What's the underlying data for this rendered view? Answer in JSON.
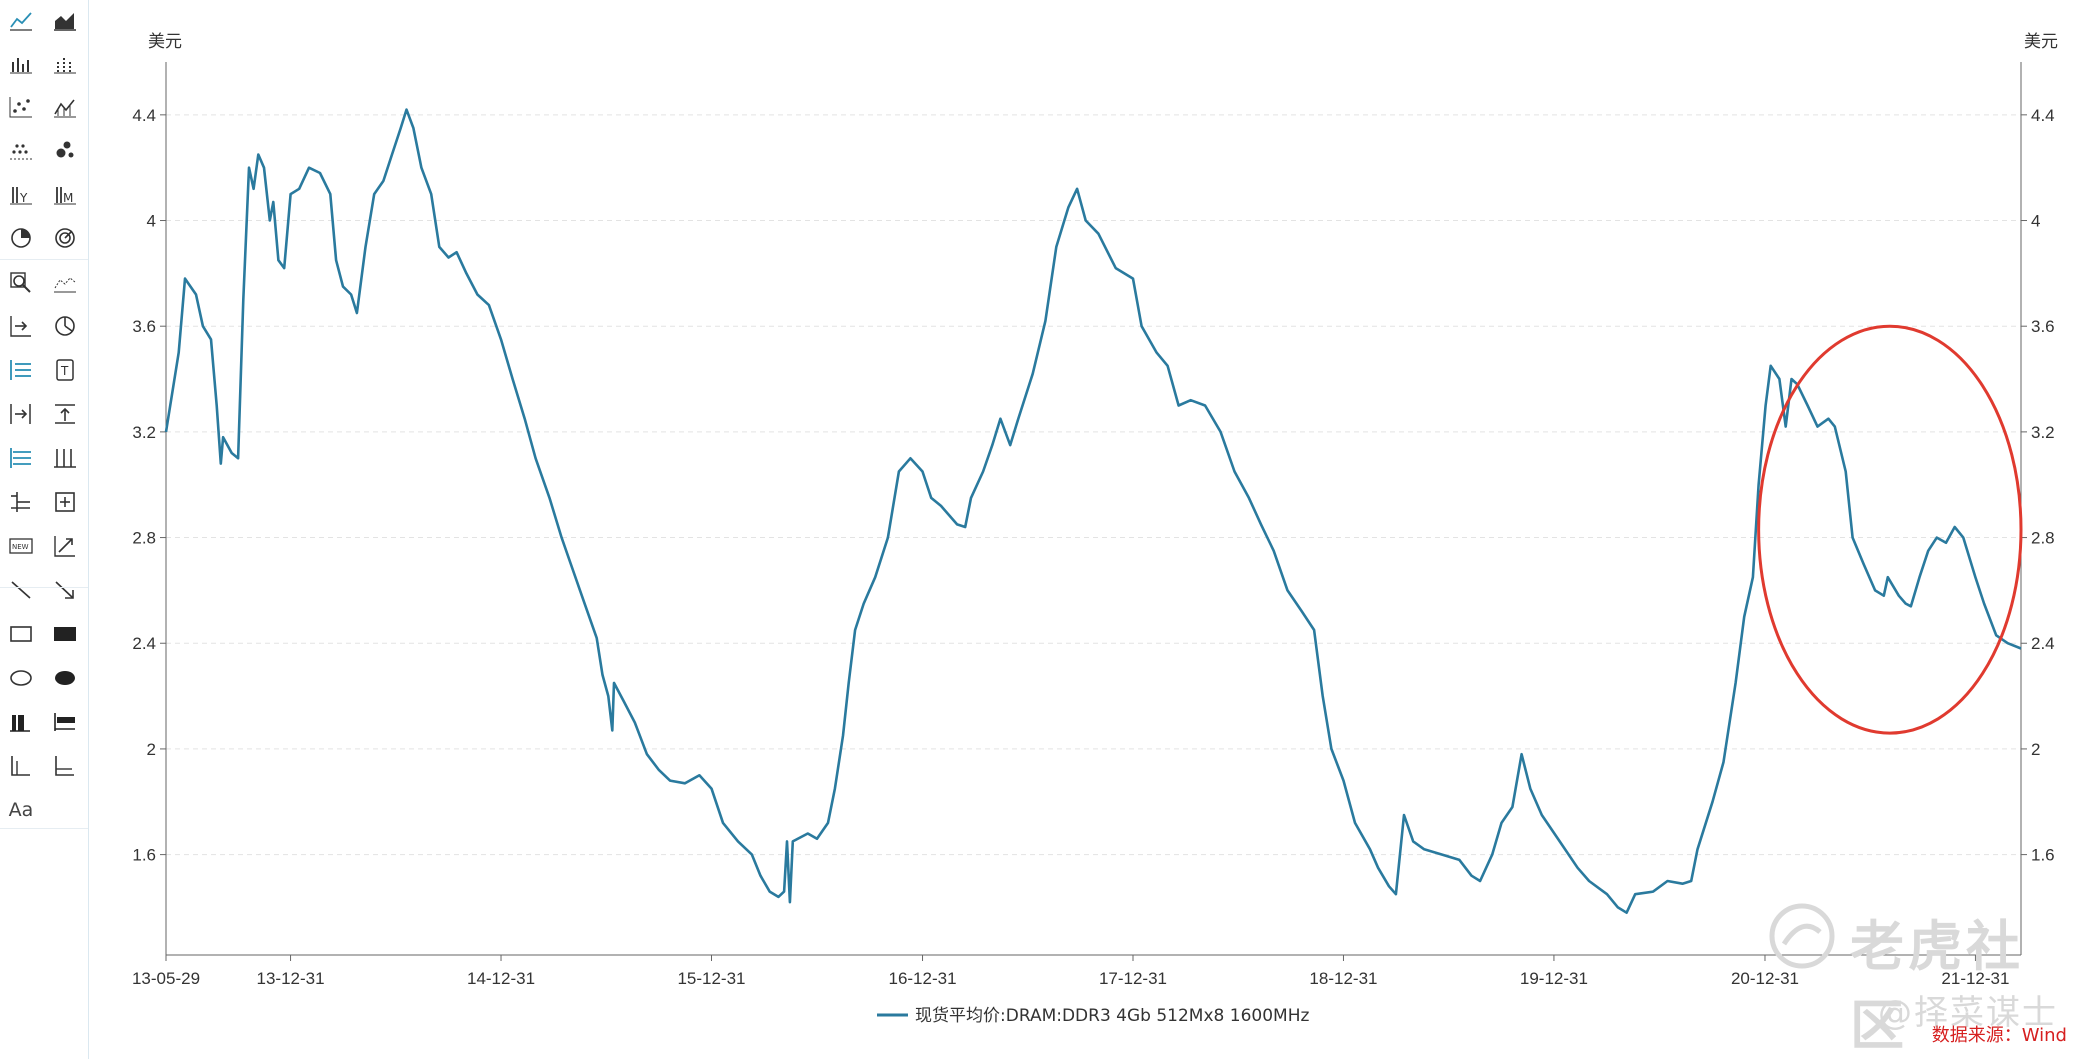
{
  "toolbar": {
    "items": [
      {
        "icon": "line-chart-icon"
      },
      {
        "icon": "area-chart-icon"
      },
      {
        "icon": "bar-chart-icon"
      },
      {
        "icon": "dotted-bar-chart-icon"
      },
      {
        "icon": "scatter-chart-icon"
      },
      {
        "icon": "area-bar-chart-icon"
      },
      {
        "icon": "dot-plot-icon"
      },
      {
        "icon": "bubble-chart-icon"
      },
      {
        "icon": "bar-y-chart-icon"
      },
      {
        "icon": "bar-m-chart-icon"
      },
      {
        "icon": "pie-chart-icon"
      },
      {
        "icon": "radar-chart-icon"
      },
      {
        "icon": "zoom-icon"
      },
      {
        "icon": "histogram-icon"
      },
      {
        "icon": "arrow-right-icon"
      },
      {
        "icon": "pie-slice-icon"
      },
      {
        "icon": "list-lines-icon"
      },
      {
        "icon": "text-box-icon"
      },
      {
        "icon": "arrow-right-bar-icon"
      },
      {
        "icon": "arrow-up-bar-icon"
      },
      {
        "icon": "indent-lines-icon"
      },
      {
        "icon": "column-lines-icon"
      },
      {
        "icon": "tree-lines-icon"
      },
      {
        "icon": "add-box-icon"
      },
      {
        "icon": "new-badge-icon"
      },
      {
        "icon": "trend-arrow-icon"
      },
      {
        "icon": "line-tool-icon"
      },
      {
        "icon": "arrow-tool-icon"
      },
      {
        "icon": "rectangle-outline-icon"
      },
      {
        "icon": "rectangle-filled-icon"
      },
      {
        "icon": "ellipse-outline-icon"
      },
      {
        "icon": "ellipse-filled-icon"
      },
      {
        "icon": "bar-left-icon"
      },
      {
        "icon": "bar-horizontal-icon"
      },
      {
        "icon": "axis-left-icon"
      },
      {
        "icon": "axis-bottom-icon"
      },
      {
        "icon": "text-tool-icon",
        "label": "Aa"
      }
    ]
  },
  "colors": {
    "series": "#2a7a9e",
    "annotation": "#e03a2f",
    "grid": "#e3e3e3",
    "axis": "#666666",
    "source_label": "#d61f1f"
  },
  "watermark": {
    "logo_text": "老虎社区",
    "handle": "@择菜谋士"
  },
  "source": {
    "label": "数据来源：",
    "value": "Wind"
  },
  "chart_data": {
    "type": "line",
    "unit_left": "美元",
    "unit_right": "美元",
    "ylim": [
      1.22,
      4.6
    ],
    "y_ticks": [
      1.6,
      2,
      2.4,
      2.8,
      3.2,
      3.6,
      4,
      4.4
    ],
    "y_tick_labels": [
      "1.6",
      "2",
      "2.4",
      "2.8",
      "3.2",
      "3.6",
      "4",
      "4.4"
    ],
    "x_tick_labels": [
      "13-05-29",
      "13-12-31",
      "14-12-31",
      "15-12-31",
      "16-12-31",
      "17-12-31",
      "18-12-31",
      "19-12-31",
      "20-12-31",
      "21-12-31"
    ],
    "x_ticks": [
      "2013-05-29",
      "2013-12-31",
      "2014-12-31",
      "2015-12-31",
      "2016-12-31",
      "2017-12-31",
      "2018-12-31",
      "2019-12-31",
      "2020-12-31",
      "2021-12-31"
    ],
    "xlim": [
      "2013-05-29",
      "2022-03-20"
    ],
    "grid": "horizontal-dashed",
    "legend_position": "bottom-center",
    "series": [
      {
        "name": "现货平均价:DRAM:DDR3 4Gb 512Mx8 1600MHz",
        "points": [
          [
            "2013-05-29",
            3.2
          ],
          [
            "2013-06-20",
            3.5
          ],
          [
            "2013-07-01",
            3.78
          ],
          [
            "2013-07-20",
            3.72
          ],
          [
            "2013-08-01",
            3.6
          ],
          [
            "2013-08-15",
            3.55
          ],
          [
            "2013-08-25",
            3.3
          ],
          [
            "2013-09-01",
            3.08
          ],
          [
            "2013-09-05",
            3.18
          ],
          [
            "2013-09-20",
            3.12
          ],
          [
            "2013-10-01",
            3.1
          ],
          [
            "2013-10-10",
            3.7
          ],
          [
            "2013-10-20",
            4.2
          ],
          [
            "2013-10-28",
            4.12
          ],
          [
            "2013-11-05",
            4.25
          ],
          [
            "2013-11-15",
            4.2
          ],
          [
            "2013-11-25",
            4.0
          ],
          [
            "2013-12-01",
            4.07
          ],
          [
            "2013-12-10",
            3.85
          ],
          [
            "2013-12-20",
            3.82
          ],
          [
            "2013-12-31",
            4.1
          ],
          [
            "2014-01-15",
            4.12
          ],
          [
            "2014-02-01",
            4.2
          ],
          [
            "2014-02-20",
            4.18
          ],
          [
            "2014-03-10",
            4.1
          ],
          [
            "2014-03-20",
            3.85
          ],
          [
            "2014-04-01",
            3.75
          ],
          [
            "2014-04-15",
            3.72
          ],
          [
            "2014-04-25",
            3.65
          ],
          [
            "2014-05-10",
            3.9
          ],
          [
            "2014-05-25",
            4.1
          ],
          [
            "2014-06-10",
            4.15
          ],
          [
            "2014-06-25",
            4.25
          ],
          [
            "2014-07-10",
            4.35
          ],
          [
            "2014-07-20",
            4.42
          ],
          [
            "2014-08-01",
            4.35
          ],
          [
            "2014-08-15",
            4.2
          ],
          [
            "2014-09-01",
            4.1
          ],
          [
            "2014-09-15",
            3.9
          ],
          [
            "2014-10-01",
            3.86
          ],
          [
            "2014-10-15",
            3.88
          ],
          [
            "2014-11-01",
            3.8
          ],
          [
            "2014-11-20",
            3.72
          ],
          [
            "2014-12-10",
            3.68
          ],
          [
            "2014-12-31",
            3.55
          ],
          [
            "2015-01-20",
            3.4
          ],
          [
            "2015-02-10",
            3.25
          ],
          [
            "2015-03-01",
            3.1
          ],
          [
            "2015-03-25",
            2.95
          ],
          [
            "2015-04-15",
            2.8
          ],
          [
            "2015-05-01",
            2.7
          ],
          [
            "2015-05-25",
            2.55
          ],
          [
            "2015-06-15",
            2.42
          ],
          [
            "2015-06-25",
            2.28
          ],
          [
            "2015-07-05",
            2.2
          ],
          [
            "2015-07-12",
            2.07
          ],
          [
            "2015-07-15",
            2.25
          ],
          [
            "2015-08-01",
            2.18
          ],
          [
            "2015-08-20",
            2.1
          ],
          [
            "2015-09-10",
            1.98
          ],
          [
            "2015-10-01",
            1.92
          ],
          [
            "2015-10-20",
            1.88
          ],
          [
            "2015-11-15",
            1.87
          ],
          [
            "2015-12-10",
            1.9
          ],
          [
            "2015-12-31",
            1.85
          ],
          [
            "2016-01-20",
            1.72
          ],
          [
            "2016-02-15",
            1.65
          ],
          [
            "2016-03-10",
            1.6
          ],
          [
            "2016-03-25",
            1.52
          ],
          [
            "2016-04-10",
            1.46
          ],
          [
            "2016-04-25",
            1.44
          ],
          [
            "2016-05-05",
            1.46
          ],
          [
            "2016-05-10",
            1.65
          ],
          [
            "2016-05-15",
            1.42
          ],
          [
            "2016-05-20",
            1.65
          ],
          [
            "2016-06-15",
            1.68
          ],
          [
            "2016-07-01",
            1.66
          ],
          [
            "2016-07-20",
            1.72
          ],
          [
            "2016-08-01",
            1.85
          ],
          [
            "2016-08-15",
            2.05
          ],
          [
            "2016-08-25",
            2.25
          ],
          [
            "2016-09-05",
            2.45
          ],
          [
            "2016-09-20",
            2.55
          ],
          [
            "2016-10-10",
            2.65
          ],
          [
            "2016-11-01",
            2.8
          ],
          [
            "2016-11-20",
            3.05
          ],
          [
            "2016-12-10",
            3.1
          ],
          [
            "2016-12-31",
            3.05
          ],
          [
            "2017-01-15",
            2.95
          ],
          [
            "2017-02-01",
            2.92
          ],
          [
            "2017-03-01",
            2.85
          ],
          [
            "2017-03-15",
            2.84
          ],
          [
            "2017-03-25",
            2.95
          ],
          [
            "2017-04-15",
            3.05
          ],
          [
            "2017-05-01",
            3.15
          ],
          [
            "2017-05-15",
            3.25
          ],
          [
            "2017-06-01",
            3.15
          ],
          [
            "2017-06-15",
            3.25
          ],
          [
            "2017-07-10",
            3.42
          ],
          [
            "2017-08-01",
            3.62
          ],
          [
            "2017-08-20",
            3.9
          ],
          [
            "2017-09-10",
            4.05
          ],
          [
            "2017-09-25",
            4.12
          ],
          [
            "2017-10-10",
            4.0
          ],
          [
            "2017-11-01",
            3.95
          ],
          [
            "2017-12-01",
            3.82
          ],
          [
            "2017-12-31",
            3.78
          ],
          [
            "2018-01-15",
            3.6
          ],
          [
            "2018-02-10",
            3.5
          ],
          [
            "2018-03-01",
            3.45
          ],
          [
            "2018-03-20",
            3.3
          ],
          [
            "2018-04-10",
            3.32
          ],
          [
            "2018-05-05",
            3.3
          ],
          [
            "2018-06-01",
            3.2
          ],
          [
            "2018-06-25",
            3.05
          ],
          [
            "2018-07-20",
            2.95
          ],
          [
            "2018-08-10",
            2.85
          ],
          [
            "2018-09-01",
            2.75
          ],
          [
            "2018-09-25",
            2.6
          ],
          [
            "2018-10-20",
            2.52
          ],
          [
            "2018-11-10",
            2.45
          ],
          [
            "2018-11-25",
            2.2
          ],
          [
            "2018-12-10",
            2.0
          ],
          [
            "2018-12-31",
            1.88
          ],
          [
            "2019-01-20",
            1.72
          ],
          [
            "2019-02-15",
            1.62
          ],
          [
            "2019-03-01",
            1.55
          ],
          [
            "2019-03-20",
            1.48
          ],
          [
            "2019-04-01",
            1.45
          ],
          [
            "2019-04-15",
            1.75
          ],
          [
            "2019-05-01",
            1.65
          ],
          [
            "2019-05-20",
            1.62
          ],
          [
            "2019-06-20",
            1.6
          ],
          [
            "2019-07-20",
            1.58
          ],
          [
            "2019-08-10",
            1.52
          ],
          [
            "2019-08-25",
            1.5
          ],
          [
            "2019-09-15",
            1.6
          ],
          [
            "2019-10-01",
            1.72
          ],
          [
            "2019-10-20",
            1.78
          ],
          [
            "2019-11-05",
            1.98
          ],
          [
            "2019-11-20",
            1.85
          ],
          [
            "2019-12-10",
            1.75
          ],
          [
            "2020-01-10",
            1.65
          ],
          [
            "2020-02-10",
            1.55
          ],
          [
            "2020-03-01",
            1.5
          ],
          [
            "2020-04-01",
            1.45
          ],
          [
            "2020-04-20",
            1.4
          ],
          [
            "2020-05-05",
            1.38
          ],
          [
            "2020-05-20",
            1.45
          ],
          [
            "2020-06-20",
            1.46
          ],
          [
            "2020-07-15",
            1.5
          ],
          [
            "2020-08-10",
            1.49
          ],
          [
            "2020-08-25",
            1.5
          ],
          [
            "2020-09-05",
            1.62
          ],
          [
            "2020-10-01",
            1.8
          ],
          [
            "2020-10-20",
            1.95
          ],
          [
            "2020-11-10",
            2.25
          ],
          [
            "2020-11-25",
            2.5
          ],
          [
            "2020-12-10",
            2.65
          ],
          [
            "2020-12-20",
            3.0
          ],
          [
            "2021-01-01",
            3.3
          ],
          [
            "2021-01-10",
            3.45
          ],
          [
            "2021-01-25",
            3.4
          ],
          [
            "2021-02-05",
            3.22
          ],
          [
            "2021-02-15",
            3.4
          ],
          [
            "2021-02-25",
            3.38
          ],
          [
            "2021-03-15",
            3.3
          ],
          [
            "2021-04-01",
            3.22
          ],
          [
            "2021-04-20",
            3.25
          ],
          [
            "2021-05-01",
            3.22
          ],
          [
            "2021-05-20",
            3.05
          ],
          [
            "2021-06-01",
            2.8
          ],
          [
            "2021-06-20",
            2.7
          ],
          [
            "2021-07-10",
            2.6
          ],
          [
            "2021-07-25",
            2.58
          ],
          [
            "2021-08-01",
            2.65
          ],
          [
            "2021-08-20",
            2.58
          ],
          [
            "2021-09-01",
            2.55
          ],
          [
            "2021-09-10",
            2.54
          ],
          [
            "2021-09-25",
            2.65
          ],
          [
            "2021-10-10",
            2.75
          ],
          [
            "2021-10-25",
            2.8
          ],
          [
            "2021-11-10",
            2.78
          ],
          [
            "2021-11-25",
            2.84
          ],
          [
            "2021-12-10",
            2.8
          ],
          [
            "2021-12-31",
            2.65
          ],
          [
            "2022-01-15",
            2.55
          ],
          [
            "2022-02-05",
            2.43
          ],
          [
            "2022-02-25",
            2.4
          ],
          [
            "2022-03-20",
            2.38
          ]
        ]
      }
    ],
    "annotation": {
      "shape": "ellipse",
      "color": "#e03a2f",
      "x_range": [
        "2020-12-20",
        "2022-03-20"
      ],
      "y_range": [
        2.06,
        3.6
      ]
    }
  }
}
